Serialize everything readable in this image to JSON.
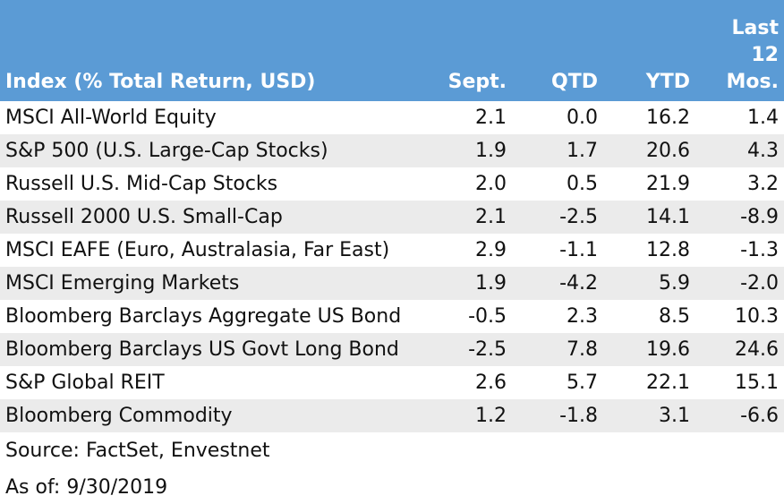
{
  "chart_data": {
    "type": "table",
    "columns": [
      "Index (% Total Return, USD)",
      "Sept.",
      "QTD",
      "YTD",
      "Last 12 Mos."
    ],
    "last_col_lines": [
      "Last",
      "12",
      "Mos."
    ],
    "rows": [
      {
        "name": "MSCI All-World Equity",
        "values": [
          "2.1",
          "0.0",
          "16.2",
          "1.4"
        ]
      },
      {
        "name": "S&P 500 (U.S. Large-Cap Stocks)",
        "values": [
          "1.9",
          "1.7",
          "20.6",
          "4.3"
        ]
      },
      {
        "name": "Russell U.S. Mid-Cap Stocks",
        "values": [
          "2.0",
          "0.5",
          "21.9",
          "3.2"
        ]
      },
      {
        "name": "Russell 2000 U.S. Small-Cap",
        "values": [
          "2.1",
          "-2.5",
          "14.1",
          "-8.9"
        ]
      },
      {
        "name": "MSCI EAFE (Euro, Australasia, Far East)",
        "values": [
          "2.9",
          "-1.1",
          "12.8",
          "-1.3"
        ]
      },
      {
        "name": "MSCI Emerging Markets",
        "values": [
          "1.9",
          "-4.2",
          "5.9",
          "-2.0"
        ]
      },
      {
        "name": "Bloomberg Barclays Aggregate US Bond",
        "values": [
          "-0.5",
          "2.3",
          "8.5",
          "10.3"
        ]
      },
      {
        "name": "Bloomberg Barclays US Govt Long Bond",
        "values": [
          "-2.5",
          "7.8",
          "19.6",
          "24.6"
        ]
      },
      {
        "name": "S&P Global REIT",
        "values": [
          "2.6",
          "5.7",
          "22.1",
          "15.1"
        ]
      },
      {
        "name": "Bloomberg Commodity",
        "values": [
          "1.2",
          "-1.8",
          "3.1",
          "-6.6"
        ]
      }
    ],
    "source": "Source: FactSet, Envestnet",
    "as_of": "As of: 9/30/2019"
  },
  "colors": {
    "header_bg": "#5b9bd5",
    "header_text": "#ffffff",
    "stripe": "#ebebeb"
  }
}
